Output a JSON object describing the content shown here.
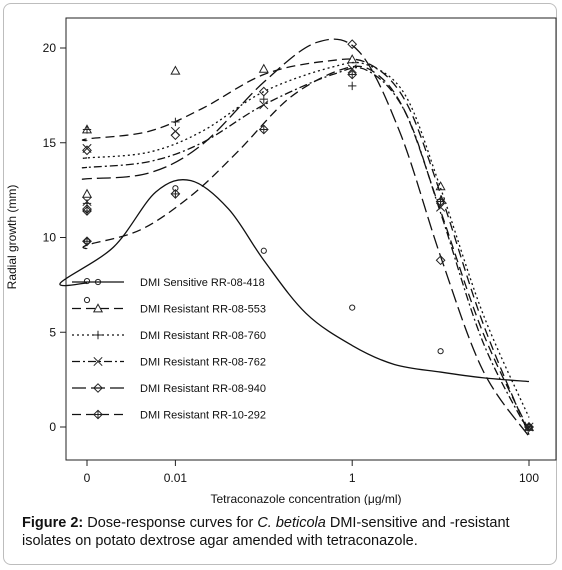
{
  "caption": {
    "label": "Figure 2:",
    "text_before": " Dose-response curves for ",
    "italic": "C. beticola",
    "text_after": " DMI-sensitive and -resistant isolates on potato dextrose agar amended with tetraconazole."
  },
  "chart_data": {
    "type": "scatter",
    "xlabel": "Tetraconazole concentration (μg/ml)",
    "ylabel": "Radial growth (mm)",
    "x_scale": "log (with 0 shown at left)",
    "x_ticks": [
      {
        "value": 0,
        "label": "0"
      },
      {
        "value": 0.01,
        "label": "0.01"
      },
      {
        "value": 1,
        "label": "1"
      },
      {
        "value": 100,
        "label": "100"
      }
    ],
    "y_ticks": [
      0,
      5,
      10,
      15,
      20
    ],
    "ylim": [
      -0.5,
      21
    ],
    "grid": false,
    "legend_position": "left",
    "x_categories_used": [
      "0",
      "0.001",
      "0.01",
      "0.1",
      "1",
      "10",
      "100"
    ],
    "series": [
      {
        "name": "DMI Sensitive RR-08-418",
        "marker": "circle",
        "dash": "solid",
        "points": [
          [
            0,
            7.7
          ],
          [
            0,
            6.7
          ],
          [
            0.001,
            9.8
          ],
          [
            0.01,
            12.6
          ],
          [
            0.1,
            9.3
          ],
          [
            1,
            6.3
          ],
          [
            10,
            4.0
          ],
          [
            100,
            0
          ]
        ],
        "curve": [
          [
            0,
            7.6
          ],
          [
            0.0005,
            7.6
          ],
          [
            0.002,
            9.5
          ],
          [
            0.006,
            12.4
          ],
          [
            0.015,
            13.0
          ],
          [
            0.04,
            11.5
          ],
          [
            0.1,
            8.8
          ],
          [
            0.3,
            6.0
          ],
          [
            1,
            4.3
          ],
          [
            3,
            3.3
          ],
          [
            10,
            2.9
          ],
          [
            30,
            2.6
          ],
          [
            100,
            2.4
          ]
        ]
      },
      {
        "name": "DMI Resistant RR-08-553",
        "marker": "triangle",
        "dash": "dashed",
        "points": [
          [
            0,
            12.3
          ],
          [
            0.001,
            15.7
          ],
          [
            0.01,
            18.8
          ],
          [
            0.1,
            18.9
          ],
          [
            1,
            19.4
          ],
          [
            10,
            12.7
          ],
          [
            100,
            0
          ]
        ],
        "curve": [
          [
            0,
            15.1
          ],
          [
            0.001,
            15.2
          ],
          [
            0.005,
            15.6
          ],
          [
            0.02,
            16.8
          ],
          [
            0.1,
            18.6
          ],
          [
            0.5,
            19.3
          ],
          [
            1.5,
            19.2
          ],
          [
            4,
            17.2
          ],
          [
            10,
            12.3
          ],
          [
            30,
            5.5
          ],
          [
            100,
            -0.4
          ]
        ]
      },
      {
        "name": "DMI Resistant RR-08-760",
        "marker": "plus",
        "dash": "dotted",
        "points": [
          [
            0,
            11.8
          ],
          [
            0.001,
            15.7
          ],
          [
            0.01,
            16.1
          ],
          [
            0.1,
            17.3
          ],
          [
            1,
            18.0
          ],
          [
            10,
            12.0
          ],
          [
            100,
            0
          ]
        ],
        "curve": [
          [
            0,
            14.2
          ],
          [
            0.001,
            14.2
          ],
          [
            0.005,
            14.5
          ],
          [
            0.02,
            15.6
          ],
          [
            0.1,
            17.7
          ],
          [
            0.6,
            19.0
          ],
          [
            1.5,
            19.1
          ],
          [
            4,
            17.5
          ],
          [
            10,
            12.6
          ],
          [
            30,
            6.0
          ],
          [
            100,
            0.5
          ]
        ]
      },
      {
        "name": "DMI Resistant RR-08-762",
        "marker": "x",
        "dash": "dashdot",
        "points": [
          [
            0,
            11.9
          ],
          [
            0.001,
            14.7
          ],
          [
            0.01,
            15.6
          ],
          [
            0.1,
            17.0
          ],
          [
            1,
            18.9
          ],
          [
            10,
            11.6
          ],
          [
            100,
            0
          ]
        ],
        "curve": [
          [
            0,
            13.7
          ],
          [
            0.001,
            13.7
          ],
          [
            0.005,
            14.0
          ],
          [
            0.02,
            15.0
          ],
          [
            0.1,
            17.0
          ],
          [
            0.6,
            18.6
          ],
          [
            1.5,
            18.8
          ],
          [
            4,
            16.6
          ],
          [
            10,
            11.3
          ],
          [
            30,
            4.5
          ],
          [
            100,
            -0.3
          ]
        ]
      },
      {
        "name": "DMI Resistant RR-08-940",
        "marker": "diamond",
        "dash": "longdash",
        "points": [
          [
            0,
            11.5
          ],
          [
            0.001,
            14.6
          ],
          [
            0.01,
            15.4
          ],
          [
            0.1,
            17.7
          ],
          [
            1,
            20.2
          ],
          [
            10,
            8.8
          ],
          [
            100,
            0
          ]
        ],
        "curve": [
          [
            0,
            13.1
          ],
          [
            0.001,
            13.1
          ],
          [
            0.005,
            13.4
          ],
          [
            0.02,
            14.9
          ],
          [
            0.1,
            18.2
          ],
          [
            0.4,
            20.3
          ],
          [
            1.2,
            19.8
          ],
          [
            3.5,
            15.5
          ],
          [
            10,
            9.0
          ],
          [
            30,
            3.0
          ],
          [
            100,
            -0.5
          ]
        ]
      },
      {
        "name": "DMI Resistant RR-10-292",
        "marker": "diamond-plus",
        "dash": "dashed",
        "points": [
          [
            0,
            11.4
          ],
          [
            0.001,
            9.8
          ],
          [
            0.01,
            12.3
          ],
          [
            0.1,
            15.7
          ],
          [
            1,
            18.6
          ],
          [
            10,
            11.9
          ],
          [
            100,
            0
          ]
        ],
        "curve": [
          [
            0,
            9.4
          ],
          [
            0.001,
            9.6
          ],
          [
            0.004,
            10.4
          ],
          [
            0.015,
            12.2
          ],
          [
            0.05,
            14.5
          ],
          [
            0.2,
            17.4
          ],
          [
            0.8,
            18.9
          ],
          [
            1.8,
            18.7
          ],
          [
            4,
            16.6
          ],
          [
            10,
            11.4
          ],
          [
            30,
            5.0
          ],
          [
            100,
            -0.2
          ]
        ]
      }
    ]
  }
}
